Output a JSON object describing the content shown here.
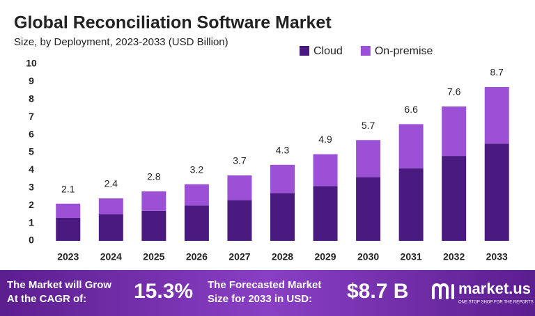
{
  "chart_data": {
    "type": "stacked-bar",
    "title": "Global Reconciliation Software Market",
    "subtitle": "Size, by Deployment, 2023-2033 (USD Billion)",
    "categories": [
      "2023",
      "2024",
      "2025",
      "2026",
      "2027",
      "2028",
      "2029",
      "2030",
      "2031",
      "2032",
      "2033"
    ],
    "series": [
      {
        "name": "Cloud",
        "color": "#4b1a80",
        "values": [
          1.3,
          1.5,
          1.7,
          2.0,
          2.3,
          2.7,
          3.1,
          3.6,
          4.1,
          4.8,
          5.5
        ]
      },
      {
        "name": "On-premise",
        "color": "#9b50d6",
        "values": [
          0.8,
          0.9,
          1.1,
          1.2,
          1.4,
          1.6,
          1.8,
          2.1,
          2.5,
          2.8,
          3.2
        ]
      }
    ],
    "totals": [
      2.1,
      2.4,
      2.8,
      3.2,
      3.7,
      4.3,
      4.9,
      5.7,
      6.6,
      7.6,
      8.7
    ],
    "ylim": [
      0,
      10
    ],
    "yticks": [
      0,
      1,
      2,
      3,
      4,
      5,
      6,
      7,
      8,
      9,
      10
    ],
    "grid": false,
    "legend": "top-right"
  },
  "footer": {
    "cagr_text": [
      "The Market will Grow",
      "At the CAGR of:"
    ],
    "cagr_value": "15.3%",
    "forecast_text": [
      "The Forecasted Market",
      "Size for 2033 in USD:"
    ],
    "forecast_value": "$8.7 B",
    "brand": "market.us",
    "tagline": "ONE STOP SHOP FOR THE REPORTS"
  }
}
